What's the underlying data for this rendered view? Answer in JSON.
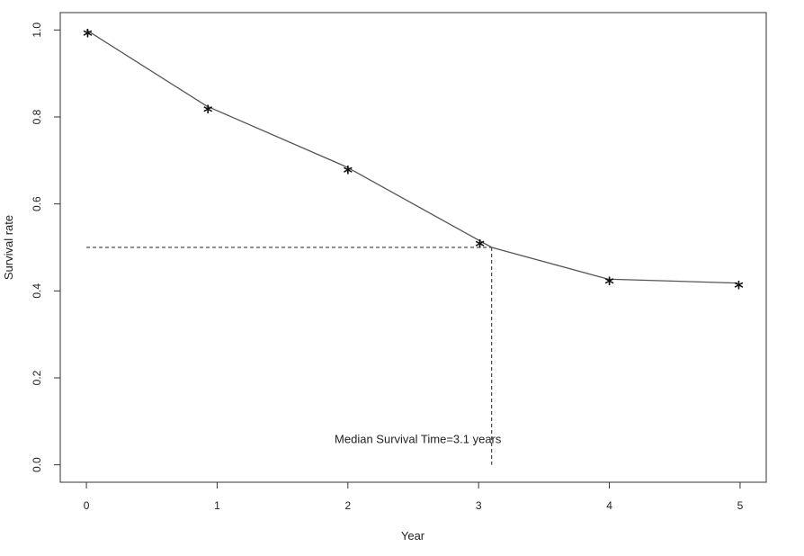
{
  "chart_data": {
    "type": "line",
    "xlabel": "Year",
    "ylabel": "Survival rate",
    "x_ticks": [
      0,
      1,
      2,
      3,
      4,
      5
    ],
    "y_ticks": [
      0.0,
      0.2,
      0.4,
      0.6,
      0.8,
      1.0
    ],
    "y_tick_labels": [
      "0.0",
      "0.2",
      "0.4",
      "0.6",
      "0.8",
      "1.0"
    ],
    "xlim": [
      -0.2,
      5.2
    ],
    "ylim": [
      -0.04,
      1.04
    ],
    "grid": false,
    "marker_symbol": "*",
    "line_color": "#555555",
    "series": [
      {
        "line": {
          "x": [
            0,
            0.92,
            1.99,
            3.1,
            3.99,
            4.98
          ],
          "y": [
            1.0,
            0.825,
            0.685,
            0.5,
            0.427,
            0.418
          ]
        },
        "markers": {
          "x": [
            0.01,
            0.93,
            2.0,
            3.01,
            4.0,
            4.99
          ],
          "y": [
            0.995,
            0.82,
            0.68,
            0.51,
            0.425,
            0.415
          ]
        }
      }
    ],
    "median_line": {
      "x": 3.1,
      "y": 0.5
    },
    "annotation": {
      "text": "Median Survival Time=3.1 years",
      "x": 3.1,
      "y": 0.05
    }
  }
}
